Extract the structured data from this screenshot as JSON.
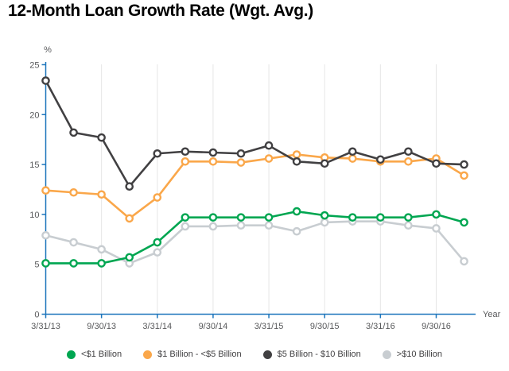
{
  "title": "12-Month Loan Growth Rate (Wgt. Avg.)",
  "chart_data": {
    "type": "line",
    "title": "12-Month Loan Growth Rate (Wgt. Avg.)",
    "y_axis_unit": "%",
    "x_axis_title": "Year",
    "ylim": [
      0,
      25
    ],
    "y_ticks": [
      0,
      5,
      10,
      15,
      20,
      25
    ],
    "x": [
      "3/31/13",
      "6/30/13",
      "9/30/13",
      "12/31/13",
      "3/31/14",
      "6/30/14",
      "9/30/14",
      "12/31/14",
      "3/31/15",
      "6/30/15",
      "9/30/15",
      "12/31/15",
      "3/31/16",
      "6/30/16",
      "9/30/16",
      "12/31/16"
    ],
    "x_tick_labels": [
      "3/31/13",
      "9/30/13",
      "3/31/14",
      "9/30/14",
      "3/31/15",
      "9/30/15",
      "3/31/16",
      "9/30/16"
    ],
    "grid": "vertical lines at labeled date ticks only",
    "legend_position": "bottom",
    "marker": "open-circle",
    "series": [
      {
        "name": "<$1 Billion",
        "color": "#00A651",
        "values": [
          5.1,
          5.1,
          5.1,
          5.7,
          7.2,
          9.7,
          9.7,
          9.7,
          9.7,
          10.3,
          9.9,
          9.7,
          9.7,
          9.7,
          10.0,
          9.2
        ]
      },
      {
        "name": "$1 Billion - <$5 Billion",
        "color": "#FAA74A",
        "values": [
          12.4,
          12.2,
          12.0,
          9.6,
          11.7,
          15.3,
          15.3,
          15.2,
          15.6,
          16.0,
          15.7,
          15.6,
          15.3,
          15.3,
          15.6,
          13.9
        ]
      },
      {
        "name": "$5 Billion - $10 Billion",
        "color": "#414042",
        "values": [
          23.4,
          18.2,
          17.7,
          12.8,
          16.1,
          16.3,
          16.2,
          16.1,
          16.9,
          15.3,
          15.1,
          16.3,
          15.5,
          16.3,
          15.1,
          15.0
        ]
      },
      {
        "name": ">$10 Billion",
        "color": "#C8CDD1",
        "values": [
          7.9,
          7.2,
          6.5,
          5.1,
          6.2,
          8.8,
          8.8,
          8.9,
          8.9,
          8.3,
          9.2,
          9.3,
          9.3,
          8.9,
          8.6,
          5.3
        ]
      }
    ],
    "colors": {
      "axis": "#1C75BC",
      "grid": "#E6E6E6",
      "tick_text": "#58595B",
      "title_text": "#000000",
      "legend_text": "#414042"
    }
  }
}
